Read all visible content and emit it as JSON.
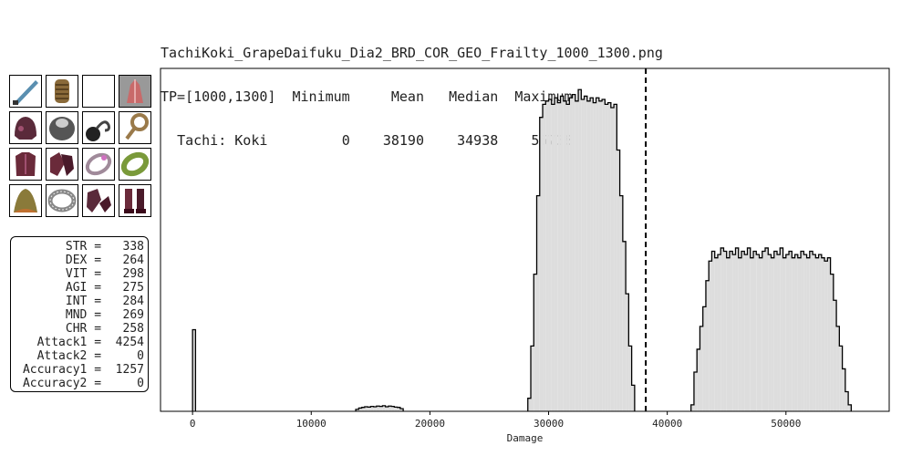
{
  "header": {
    "filename": "TachiKoki_GrapeDaifuku_Dia2_BRD_COR_GEO_Frailty_1000_1300.png",
    "tp_label": "TP=[1000,1300]",
    "col_minimum": "Minimum",
    "col_mean": "Mean",
    "col_median": "Median",
    "col_maximum": "Maximum",
    "ws_label": "Tachi: Koki",
    "minimum": "0",
    "mean": "38190",
    "median": "34938",
    "maximum": "55738"
  },
  "equipment": [
    {
      "icon": "katana-icon",
      "color": "#5a8fb0"
    },
    {
      "icon": "grip-icon",
      "color": "#8a6a3a"
    },
    {
      "icon": "empty-slot",
      "color": "#ffffff"
    },
    {
      "icon": "crystal-ammo-icon",
      "color": "#c86a6a"
    },
    {
      "icon": "helm-icon",
      "color": "#5a2a3a"
    },
    {
      "icon": "gorget-icon",
      "color": "#555555"
    },
    {
      "icon": "bomb-earring-icon",
      "color": "#444444"
    },
    {
      "icon": "earring-icon",
      "color": "#9a7a4a"
    },
    {
      "icon": "body-armor-icon",
      "color": "#6a2a3a"
    },
    {
      "icon": "gauntlets-icon",
      "color": "#6a2a3a"
    },
    {
      "icon": "ring-icon",
      "color": "#a08a9a"
    },
    {
      "icon": "green-ring-icon",
      "color": "#7a9a3a"
    },
    {
      "icon": "cape-icon",
      "color": "#8a7a3a"
    },
    {
      "icon": "belt-icon",
      "color": "#888888"
    },
    {
      "icon": "legs-icon",
      "color": "#5a2a3a"
    },
    {
      "icon": "boots-icon",
      "color": "#6a2a3a"
    }
  ],
  "stats": [
    {
      "label": "STR =",
      "value": "338"
    },
    {
      "label": "DEX =",
      "value": "264"
    },
    {
      "label": "VIT =",
      "value": "298"
    },
    {
      "label": "AGI =",
      "value": "275"
    },
    {
      "label": "INT =",
      "value": "284"
    },
    {
      "label": "MND =",
      "value": "269"
    },
    {
      "label": "CHR =",
      "value": "258"
    },
    {
      "label": "Attack1 =",
      "value": "4254"
    },
    {
      "label": "Attack2 =",
      "value": "0"
    },
    {
      "label": "Accuracy1 =",
      "value": "1257"
    },
    {
      "label": "Accuracy2 =",
      "value": "0"
    }
  ],
  "chart_data": {
    "type": "histogram",
    "xlabel": "Damage",
    "ylabel": "",
    "xlim": [
      -2700,
      58700
    ],
    "ylim": [
      0,
      1.05
    ],
    "xticks": [
      0,
      10000,
      20000,
      30000,
      40000,
      50000
    ],
    "yticks": [],
    "grid": false,
    "fill_color": "#dddddd",
    "edge_color": "#000000",
    "mean_line": {
      "x": 38190,
      "style": "dashed",
      "color": "#000000"
    },
    "bin_width": 250,
    "bins": [
      {
        "x0": 0,
        "x1": 250,
        "y": 0.25
      },
      {
        "x0": 13750,
        "x1": 14000,
        "y": 0.006
      },
      {
        "x0": 14000,
        "x1": 14250,
        "y": 0.01
      },
      {
        "x0": 14250,
        "x1": 14500,
        "y": 0.012
      },
      {
        "x0": 14500,
        "x1": 14750,
        "y": 0.014
      },
      {
        "x0": 14750,
        "x1": 15000,
        "y": 0.013
      },
      {
        "x0": 15000,
        "x1": 15250,
        "y": 0.015
      },
      {
        "x0": 15250,
        "x1": 15500,
        "y": 0.014
      },
      {
        "x0": 15500,
        "x1": 15750,
        "y": 0.016
      },
      {
        "x0": 15750,
        "x1": 16000,
        "y": 0.015
      },
      {
        "x0": 16000,
        "x1": 16250,
        "y": 0.017
      },
      {
        "x0": 16250,
        "x1": 16500,
        "y": 0.014
      },
      {
        "x0": 16500,
        "x1": 16750,
        "y": 0.016
      },
      {
        "x0": 16750,
        "x1": 17000,
        "y": 0.015
      },
      {
        "x0": 17000,
        "x1": 17250,
        "y": 0.013
      },
      {
        "x0": 17250,
        "x1": 17500,
        "y": 0.012
      },
      {
        "x0": 17500,
        "x1": 17750,
        "y": 0.008
      },
      {
        "x0": 28250,
        "x1": 28500,
        "y": 0.04
      },
      {
        "x0": 28500,
        "x1": 28750,
        "y": 0.2
      },
      {
        "x0": 28750,
        "x1": 29000,
        "y": 0.42
      },
      {
        "x0": 29000,
        "x1": 29250,
        "y": 0.66
      },
      {
        "x0": 29250,
        "x1": 29500,
        "y": 0.9
      },
      {
        "x0": 29500,
        "x1": 29750,
        "y": 0.94
      },
      {
        "x0": 29750,
        "x1": 30000,
        "y": 0.95
      },
      {
        "x0": 30000,
        "x1": 30250,
        "y": 0.955
      },
      {
        "x0": 30250,
        "x1": 30500,
        "y": 0.94
      },
      {
        "x0": 30500,
        "x1": 30750,
        "y": 0.96
      },
      {
        "x0": 30750,
        "x1": 31000,
        "y": 0.945
      },
      {
        "x0": 31000,
        "x1": 31250,
        "y": 0.965
      },
      {
        "x0": 31250,
        "x1": 31500,
        "y": 0.95
      },
      {
        "x0": 31500,
        "x1": 31750,
        "y": 0.94
      },
      {
        "x0": 31750,
        "x1": 32000,
        "y": 0.96
      },
      {
        "x0": 32000,
        "x1": 32250,
        "y": 0.97
      },
      {
        "x0": 32250,
        "x1": 32500,
        "y": 0.95
      },
      {
        "x0": 32500,
        "x1": 32750,
        "y": 0.985
      },
      {
        "x0": 32750,
        "x1": 33000,
        "y": 0.955
      },
      {
        "x0": 33000,
        "x1": 33250,
        "y": 0.965
      },
      {
        "x0": 33250,
        "x1": 33500,
        "y": 0.95
      },
      {
        "x0": 33500,
        "x1": 33750,
        "y": 0.96
      },
      {
        "x0": 33750,
        "x1": 34000,
        "y": 0.945
      },
      {
        "x0": 34000,
        "x1": 34250,
        "y": 0.96
      },
      {
        "x0": 34250,
        "x1": 34500,
        "y": 0.95
      },
      {
        "x0": 34500,
        "x1": 34750,
        "y": 0.955
      },
      {
        "x0": 34750,
        "x1": 35000,
        "y": 0.94
      },
      {
        "x0": 35000,
        "x1": 35250,
        "y": 0.945
      },
      {
        "x0": 35250,
        "x1": 35500,
        "y": 0.93
      },
      {
        "x0": 35500,
        "x1": 35750,
        "y": 0.94
      },
      {
        "x0": 35750,
        "x1": 36000,
        "y": 0.8
      },
      {
        "x0": 36000,
        "x1": 36250,
        "y": 0.66
      },
      {
        "x0": 36250,
        "x1": 36500,
        "y": 0.52
      },
      {
        "x0": 36500,
        "x1": 36750,
        "y": 0.36
      },
      {
        "x0": 36750,
        "x1": 37000,
        "y": 0.2
      },
      {
        "x0": 37000,
        "x1": 37250,
        "y": 0.08
      },
      {
        "x0": 42000,
        "x1": 42250,
        "y": 0.02
      },
      {
        "x0": 42250,
        "x1": 42500,
        "y": 0.12
      },
      {
        "x0": 42500,
        "x1": 42750,
        "y": 0.19
      },
      {
        "x0": 42750,
        "x1": 43000,
        "y": 0.26
      },
      {
        "x0": 43000,
        "x1": 43250,
        "y": 0.32
      },
      {
        "x0": 43250,
        "x1": 43500,
        "y": 0.4
      },
      {
        "x0": 43500,
        "x1": 43750,
        "y": 0.46
      },
      {
        "x0": 43750,
        "x1": 44000,
        "y": 0.49
      },
      {
        "x0": 44000,
        "x1": 44250,
        "y": 0.47
      },
      {
        "x0": 44250,
        "x1": 44500,
        "y": 0.48
      },
      {
        "x0": 44500,
        "x1": 44750,
        "y": 0.5
      },
      {
        "x0": 44750,
        "x1": 45000,
        "y": 0.49
      },
      {
        "x0": 45000,
        "x1": 45250,
        "y": 0.47
      },
      {
        "x0": 45250,
        "x1": 45500,
        "y": 0.49
      },
      {
        "x0": 45500,
        "x1": 45750,
        "y": 0.48
      },
      {
        "x0": 45750,
        "x1": 46000,
        "y": 0.5
      },
      {
        "x0": 46000,
        "x1": 46250,
        "y": 0.47
      },
      {
        "x0": 46250,
        "x1": 46500,
        "y": 0.49
      },
      {
        "x0": 46500,
        "x1": 46750,
        "y": 0.48
      },
      {
        "x0": 46750,
        "x1": 47000,
        "y": 0.5
      },
      {
        "x0": 47000,
        "x1": 47250,
        "y": 0.47
      },
      {
        "x0": 47250,
        "x1": 47500,
        "y": 0.49
      },
      {
        "x0": 47500,
        "x1": 47750,
        "y": 0.48
      },
      {
        "x0": 47750,
        "x1": 48000,
        "y": 0.47
      },
      {
        "x0": 48000,
        "x1": 48250,
        "y": 0.49
      },
      {
        "x0": 48250,
        "x1": 48500,
        "y": 0.5
      },
      {
        "x0": 48500,
        "x1": 48750,
        "y": 0.48
      },
      {
        "x0": 48750,
        "x1": 49000,
        "y": 0.47
      },
      {
        "x0": 49000,
        "x1": 49250,
        "y": 0.49
      },
      {
        "x0": 49250,
        "x1": 49500,
        "y": 0.48
      },
      {
        "x0": 49500,
        "x1": 49750,
        "y": 0.5
      },
      {
        "x0": 49750,
        "x1": 50000,
        "y": 0.47
      },
      {
        "x0": 50000,
        "x1": 50250,
        "y": 0.48
      },
      {
        "x0": 50250,
        "x1": 50500,
        "y": 0.49
      },
      {
        "x0": 50500,
        "x1": 50750,
        "y": 0.47
      },
      {
        "x0": 50750,
        "x1": 51000,
        "y": 0.48
      },
      {
        "x0": 51000,
        "x1": 51250,
        "y": 0.47
      },
      {
        "x0": 51250,
        "x1": 51500,
        "y": 0.49
      },
      {
        "x0": 51500,
        "x1": 51750,
        "y": 0.48
      },
      {
        "x0": 51750,
        "x1": 52000,
        "y": 0.47
      },
      {
        "x0": 52000,
        "x1": 52250,
        "y": 0.49
      },
      {
        "x0": 52250,
        "x1": 52500,
        "y": 0.48
      },
      {
        "x0": 52500,
        "x1": 52750,
        "y": 0.47
      },
      {
        "x0": 52750,
        "x1": 53000,
        "y": 0.48
      },
      {
        "x0": 53000,
        "x1": 53250,
        "y": 0.47
      },
      {
        "x0": 53250,
        "x1": 53500,
        "y": 0.46
      },
      {
        "x0": 53500,
        "x1": 53750,
        "y": 0.47
      },
      {
        "x0": 53750,
        "x1": 54000,
        "y": 0.42
      },
      {
        "x0": 54000,
        "x1": 54250,
        "y": 0.34
      },
      {
        "x0": 54250,
        "x1": 54500,
        "y": 0.26
      },
      {
        "x0": 54500,
        "x1": 54750,
        "y": 0.2
      },
      {
        "x0": 54750,
        "x1": 55000,
        "y": 0.13
      },
      {
        "x0": 55000,
        "x1": 55250,
        "y": 0.06
      },
      {
        "x0": 55250,
        "x1": 55500,
        "y": 0.02
      }
    ]
  }
}
